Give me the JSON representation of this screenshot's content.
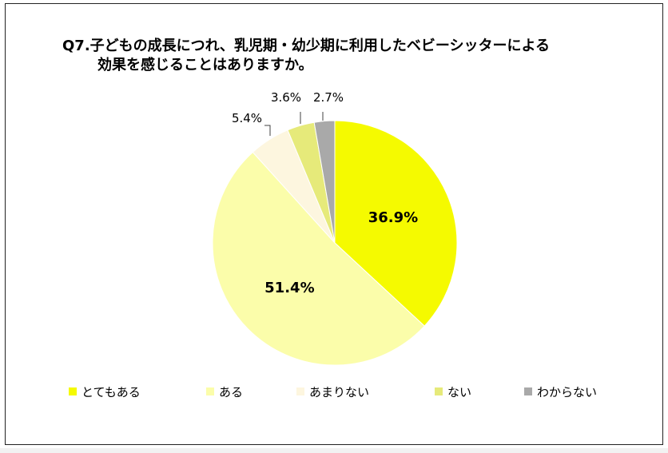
{
  "title": {
    "line1": "Q7.子どもの成長につれ、乳児期・幼少期に利用したベビーシッターによる",
    "line2": "効果を感じることはありますか。"
  },
  "chart_data": {
    "type": "pie",
    "start": "12 o'clock",
    "direction": "clockwise",
    "slices": [
      {
        "name": "とてもある",
        "value": 36.9,
        "label": "36.9%",
        "color": "#f5fa00",
        "label_position": "inside"
      },
      {
        "name": "ある",
        "value": 51.4,
        "label": "51.4%",
        "color": "#fbfdaa",
        "label_position": "inside"
      },
      {
        "name": "あまりない",
        "value": 5.4,
        "label": "5.4%",
        "color": "#fdf6df",
        "label_position": "outside"
      },
      {
        "name": "ない",
        "value": 3.6,
        "label": "3.6%",
        "color": "#e6ea7a",
        "label_position": "outside"
      },
      {
        "name": "わからない",
        "value": 2.7,
        "label": "2.7%",
        "color": "#a9a9a9",
        "label_position": "outside"
      }
    ],
    "legend": {
      "placement": "bottom"
    }
  }
}
